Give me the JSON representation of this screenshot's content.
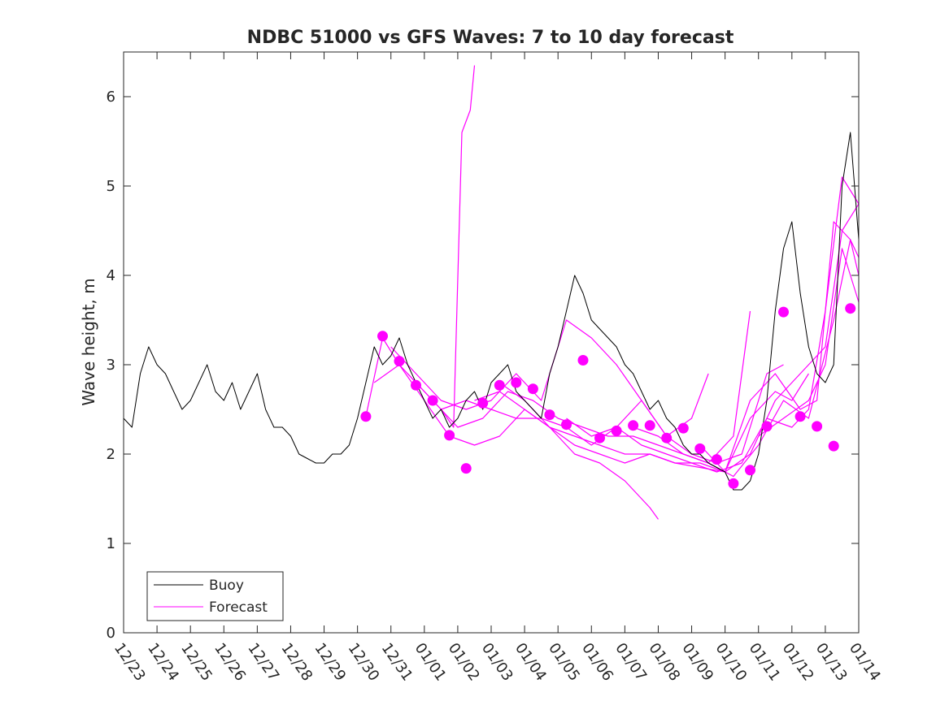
{
  "chart_data": {
    "type": "line",
    "title": "NDBC 51000 vs GFS Waves: 7 to 10 day forecast",
    "xlabel": "",
    "ylabel": "Wave height, m",
    "x_unit": "date",
    "x_range": [
      "2023-12-23T00:00",
      "2024-01-14T00:00"
    ],
    "ylim": [
      0,
      6.5
    ],
    "y_ticks": [
      0,
      1,
      2,
      3,
      4,
      5,
      6
    ],
    "x_ticks": [
      "12/23",
      "12/24",
      "12/25",
      "12/26",
      "12/27",
      "12/28",
      "12/29",
      "12/30",
      "12/31",
      "01/01",
      "01/02",
      "01/03",
      "01/04",
      "01/05",
      "01/06",
      "01/07",
      "01/08",
      "01/09",
      "01/10",
      "01/11",
      "01/12",
      "01/13",
      "01/14"
    ],
    "grid": false,
    "legend": {
      "position": "bottom-left",
      "entries": [
        "Buoy",
        "Forecast"
      ]
    },
    "colors": {
      "buoy": "#000000",
      "forecast": "#ff00ff"
    },
    "buoy": {
      "name": "Buoy",
      "x": [
        "2023-12-23T00:00",
        "2023-12-23T06:00",
        "2023-12-23T12:00",
        "2023-12-23T18:00",
        "2023-12-24T00:00",
        "2023-12-24T06:00",
        "2023-12-24T12:00",
        "2023-12-24T18:00",
        "2023-12-25T00:00",
        "2023-12-25T06:00",
        "2023-12-25T12:00",
        "2023-12-25T18:00",
        "2023-12-26T00:00",
        "2023-12-26T06:00",
        "2023-12-26T12:00",
        "2023-12-26T18:00",
        "2023-12-27T00:00",
        "2023-12-27T06:00",
        "2023-12-27T12:00",
        "2023-12-27T18:00",
        "2023-12-28T00:00",
        "2023-12-28T06:00",
        "2023-12-28T12:00",
        "2023-12-28T18:00",
        "2023-12-29T00:00",
        "2023-12-29T06:00",
        "2023-12-29T12:00",
        "2023-12-29T18:00",
        "2023-12-30T00:00",
        "2023-12-30T06:00",
        "2023-12-30T12:00",
        "2023-12-30T18:00",
        "2023-12-31T00:00",
        "2023-12-31T06:00",
        "2023-12-31T12:00",
        "2023-12-31T18:00",
        "2024-01-01T00:00",
        "2024-01-01T06:00",
        "2024-01-01T12:00",
        "2024-01-01T18:00",
        "2024-01-02T00:00",
        "2024-01-02T06:00",
        "2024-01-02T12:00",
        "2024-01-02T18:00",
        "2024-01-03T00:00",
        "2024-01-03T06:00",
        "2024-01-03T12:00",
        "2024-01-03T18:00",
        "2024-01-04T00:00",
        "2024-01-04T06:00",
        "2024-01-04T12:00",
        "2024-01-04T18:00",
        "2024-01-05T00:00",
        "2024-01-05T06:00",
        "2024-01-05T12:00",
        "2024-01-05T18:00",
        "2024-01-06T00:00",
        "2024-01-06T06:00",
        "2024-01-06T12:00",
        "2024-01-06T18:00",
        "2024-01-07T00:00",
        "2024-01-07T06:00",
        "2024-01-07T12:00",
        "2024-01-07T18:00",
        "2024-01-08T00:00",
        "2024-01-08T06:00",
        "2024-01-08T12:00",
        "2024-01-08T18:00",
        "2024-01-09T00:00",
        "2024-01-09T06:00",
        "2024-01-09T12:00",
        "2024-01-09T18:00",
        "2024-01-10T00:00",
        "2024-01-10T06:00",
        "2024-01-10T12:00",
        "2024-01-10T18:00",
        "2024-01-11T00:00",
        "2024-01-11T06:00",
        "2024-01-11T12:00",
        "2024-01-11T18:00",
        "2024-01-12T00:00",
        "2024-01-12T06:00",
        "2024-01-12T12:00",
        "2024-01-12T18:00",
        "2024-01-13T00:00",
        "2024-01-13T06:00",
        "2024-01-13T12:00",
        "2024-01-13T18:00",
        "2024-01-14T00:00"
      ],
      "y": [
        2.4,
        2.3,
        2.9,
        3.2,
        3.0,
        2.9,
        2.7,
        2.5,
        2.6,
        2.8,
        3.0,
        2.7,
        2.6,
        2.8,
        2.5,
        2.7,
        2.9,
        2.5,
        2.3,
        2.3,
        2.2,
        2.0,
        1.95,
        1.9,
        1.9,
        2.0,
        2.0,
        2.1,
        2.4,
        2.8,
        3.2,
        3.0,
        3.1,
        3.3,
        3.0,
        2.8,
        2.6,
        2.4,
        2.5,
        2.3,
        2.4,
        2.6,
        2.7,
        2.5,
        2.8,
        2.9,
        3.0,
        2.7,
        2.6,
        2.5,
        2.4,
        2.9,
        3.2,
        3.6,
        4.0,
        3.8,
        3.5,
        3.4,
        3.3,
        3.2,
        3.0,
        2.9,
        2.7,
        2.5,
        2.6,
        2.4,
        2.3,
        2.1,
        2.0,
        2.0,
        1.9,
        1.85,
        1.8,
        1.6,
        1.6,
        1.7,
        2.0,
        2.6,
        3.6,
        4.3,
        4.6,
        3.8,
        3.2,
        2.9,
        2.8,
        3.0,
        5.0,
        5.6,
        4.4
      ]
    },
    "forecast_points": {
      "name": "Forecast",
      "x": [
        "2023-12-30T06:00",
        "2023-12-30T18:00",
        "2023-12-31T06:00",
        "2023-12-31T18:00",
        "2024-01-01T06:00",
        "2024-01-01T18:00",
        "2024-01-02T06:00",
        "2024-01-02T18:00",
        "2024-01-03T06:00",
        "2024-01-03T18:00",
        "2024-01-04T06:00",
        "2024-01-04T18:00",
        "2024-01-05T06:00",
        "2024-01-05T18:00",
        "2024-01-06T06:00",
        "2024-01-06T18:00",
        "2024-01-07T06:00",
        "2024-01-07T18:00",
        "2024-01-08T06:00",
        "2024-01-08T18:00",
        "2024-01-09T06:00",
        "2024-01-09T18:00",
        "2024-01-10T06:00",
        "2024-01-10T18:00",
        "2024-01-11T06:00",
        "2024-01-11T18:00",
        "2024-01-12T06:00",
        "2024-01-12T18:00",
        "2024-01-13T06:00",
        "2024-01-13T18:00"
      ],
      "y": [
        2.42,
        3.32,
        3.04,
        2.77,
        2.6,
        2.21,
        1.84,
        2.57,
        2.77,
        2.8,
        2.73,
        2.44,
        2.33,
        3.05,
        2.18,
        2.26,
        2.32,
        2.32,
        2.18,
        2.29,
        2.06,
        1.94,
        1.67,
        1.82,
        2.31,
        3.59,
        2.42,
        2.31,
        2.09,
        3.63
      ]
    },
    "forecast_lines": [
      {
        "x": [
          "2023-12-30T06:00",
          "2023-12-30T18:00",
          "2023-12-31T06:00",
          "2024-01-01T00:00",
          "2024-01-01T12:00",
          "2024-01-01T21:00",
          "2024-01-02T03:00",
          "2024-01-02T09:00",
          "2024-01-02T12:00"
        ],
        "y": [
          2.42,
          3.3,
          3.0,
          2.7,
          2.5,
          2.3,
          5.6,
          5.85,
          6.35
        ]
      },
      {
        "x": [
          "2023-12-30T12:00",
          "2023-12-31T06:00",
          "2024-01-01T00:00",
          "2024-01-01T18:00",
          "2024-01-02T12:00",
          "2024-01-03T06:00",
          "2024-01-04T00:00",
          "2024-01-04T18:00",
          "2024-01-05T12:00",
          "2024-01-06T06:00",
          "2024-01-07T00:00",
          "2024-01-07T18:00",
          "2024-01-08T00:00"
        ],
        "y": [
          2.8,
          3.0,
          2.6,
          2.2,
          2.1,
          2.2,
          2.5,
          2.3,
          2.0,
          1.9,
          1.7,
          1.4,
          1.27
        ]
      },
      {
        "x": [
          "2023-12-31T00:00",
          "2023-12-31T18:00",
          "2024-01-01T12:00",
          "2024-01-02T06:00",
          "2024-01-03T00:00",
          "2024-01-03T18:00",
          "2024-01-04T12:00",
          "2024-01-05T06:00",
          "2024-01-06T00:00",
          "2024-01-06T18:00",
          "2024-01-07T12:00",
          "2024-01-08T06:00",
          "2024-01-09T00:00",
          "2024-01-09T12:00"
        ],
        "y": [
          3.2,
          2.9,
          2.6,
          2.5,
          2.6,
          2.9,
          2.6,
          3.5,
          3.3,
          3.0,
          2.6,
          2.2,
          2.4,
          2.9
        ]
      },
      {
        "x": [
          "2023-12-31T12:00",
          "2024-01-01T06:00",
          "2024-01-02T00:00",
          "2024-01-02T18:00",
          "2024-01-03T12:00",
          "2024-01-04T06:00",
          "2024-01-05T00:00",
          "2024-01-05T18:00",
          "2024-01-06T12:00",
          "2024-01-07T06:00",
          "2024-01-08T00:00",
          "2024-01-08T18:00",
          "2024-01-09T12:00",
          "2024-01-10T06:00",
          "2024-01-10T18:00"
        ],
        "y": [
          2.9,
          2.6,
          2.3,
          2.4,
          2.7,
          2.6,
          2.4,
          2.3,
          2.2,
          2.2,
          2.1,
          2.0,
          1.9,
          2.2,
          3.6
        ]
      },
      {
        "x": [
          "2024-01-01T12:00",
          "2024-01-02T06:00",
          "2024-01-03T00:00",
          "2024-01-03T18:00",
          "2024-01-04T12:00",
          "2024-01-05T06:00",
          "2024-01-06T00:00",
          "2024-01-06T18:00",
          "2024-01-07T12:00",
          "2024-01-08T06:00",
          "2024-01-09T00:00",
          "2024-01-09T18:00",
          "2024-01-10T12:00",
          "2024-01-11T06:00",
          "2024-01-11T18:00"
        ],
        "y": [
          2.5,
          2.6,
          2.5,
          2.4,
          2.4,
          2.3,
          2.1,
          2.3,
          2.6,
          2.2,
          2.0,
          1.9,
          2.0,
          2.9,
          3.0
        ]
      },
      {
        "x": [
          "2024-01-02T12:00",
          "2024-01-03T06:00",
          "2024-01-04T00:00",
          "2024-01-04T18:00",
          "2024-01-05T12:00",
          "2024-01-06T06:00",
          "2024-01-07T00:00",
          "2024-01-07T18:00",
          "2024-01-08T12:00",
          "2024-01-09T06:00",
          "2024-01-10T00:00",
          "2024-01-10T18:00",
          "2024-01-11T12:00",
          "2024-01-12T00:00",
          "2024-01-12T12:00"
        ],
        "y": [
          2.6,
          2.7,
          2.5,
          2.3,
          2.2,
          2.1,
          2.0,
          2.0,
          1.9,
          1.9,
          1.8,
          2.4,
          2.7,
          2.6,
          2.9
        ]
      },
      {
        "x": [
          "2024-01-03T06:00",
          "2024-01-04T00:00",
          "2024-01-04T18:00",
          "2024-01-05T12:00",
          "2024-01-06T06:00",
          "2024-01-07T00:00",
          "2024-01-07T18:00",
          "2024-01-08T12:00",
          "2024-01-09T06:00",
          "2024-01-10T00:00",
          "2024-01-10T18:00",
          "2024-01-11T12:00",
          "2024-01-12T06:00",
          "2024-01-12T18:00",
          "2024-01-13T06:00",
          "2024-01-13T18:00",
          "2024-01-14T00:00"
        ],
        "y": [
          2.8,
          2.6,
          2.3,
          2.1,
          2.0,
          1.9,
          2.0,
          1.9,
          1.85,
          1.8,
          2.6,
          2.9,
          2.5,
          2.6,
          4.6,
          4.4,
          4.2
        ]
      },
      {
        "x": [
          "2024-01-05T06:00",
          "2024-01-06T00:00",
          "2024-01-06T18:00",
          "2024-01-07T12:00",
          "2024-01-08T06:00",
          "2024-01-09T00:00",
          "2024-01-09T18:00",
          "2024-01-10T12:00",
          "2024-01-11T06:00",
          "2024-01-12T00:00",
          "2024-01-12T12:00",
          "2024-01-13T00:00",
          "2024-01-13T12:00",
          "2024-01-14T00:00"
        ],
        "y": [
          2.4,
          2.2,
          2.3,
          2.1,
          2.0,
          1.9,
          1.8,
          1.9,
          2.4,
          2.3,
          2.5,
          3.6,
          5.1,
          4.8
        ]
      },
      {
        "x": [
          "2024-01-07T06:00",
          "2024-01-08T00:00",
          "2024-01-08T18:00",
          "2024-01-09T12:00",
          "2024-01-10T06:00",
          "2024-01-11T00:00",
          "2024-01-11T18:00",
          "2024-01-12T12:00",
          "2024-01-13T06:00",
          "2024-01-13T18:00",
          "2024-01-14T00:00"
        ],
        "y": [
          2.3,
          2.2,
          2.0,
          1.9,
          1.75,
          2.1,
          2.6,
          2.4,
          3.5,
          4.4,
          4.0
        ]
      },
      {
        "x": [
          "2024-01-09T06:00",
          "2024-01-10T00:00",
          "2024-01-10T18:00",
          "2024-01-11T12:00",
          "2024-01-12T06:00",
          "2024-01-13T00:00",
          "2024-01-13T12:00",
          "2024-01-14T00:00"
        ],
        "y": [
          2.1,
          1.8,
          2.0,
          2.6,
          2.9,
          3.2,
          4.5,
          4.8
        ]
      },
      {
        "x": [
          "2024-01-11T00:00",
          "2024-01-11T18:00",
          "2024-01-12T12:00",
          "2024-01-13T00:00",
          "2024-01-13T12:00",
          "2024-01-14T00:00"
        ],
        "y": [
          2.2,
          2.4,
          2.6,
          3.0,
          4.3,
          3.7
        ]
      }
    ]
  }
}
